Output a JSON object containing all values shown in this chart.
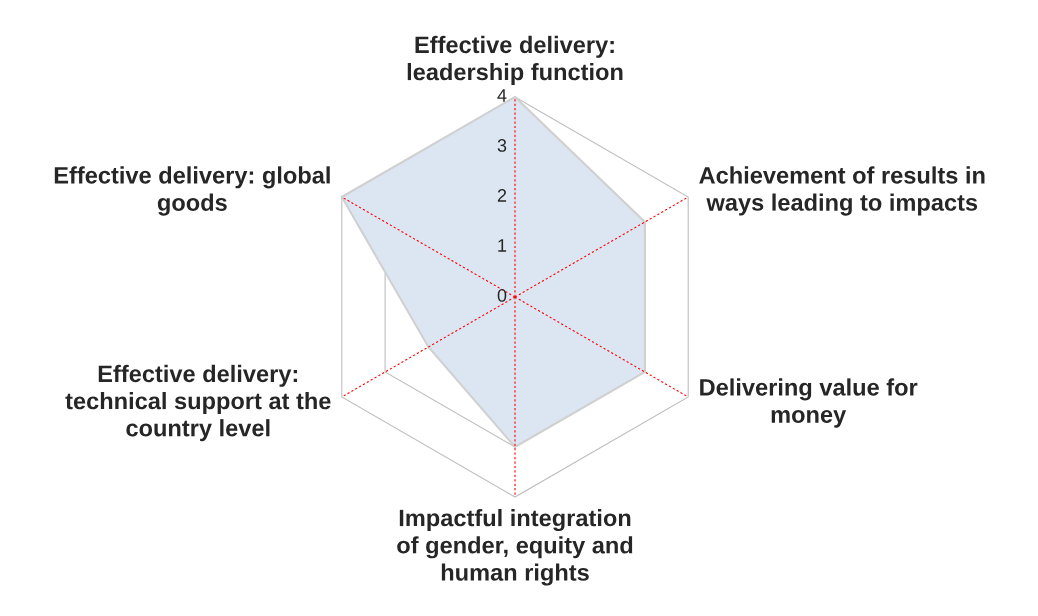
{
  "chart_data": {
    "type": "radar",
    "categories": [
      "Effective delivery: leadership function",
      "Achievement of results in ways leading to impacts",
      "Delivering value for money",
      "Impactful integration of gender, equity and human rights",
      "Effective delivery: technical support at the country level",
      "Effective delivery: global goods"
    ],
    "series": [
      {
        "color": "#dce6f2",
        "values": [
          4,
          3,
          3,
          3,
          2,
          4
        ]
      }
    ],
    "ylim": [
      0,
      4
    ],
    "yticks": [
      0,
      1,
      2,
      3,
      4
    ],
    "grid": true
  }
}
